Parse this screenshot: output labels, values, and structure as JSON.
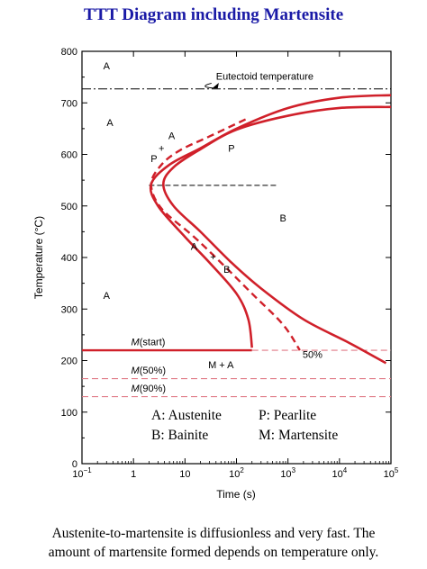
{
  "title": "TTT Diagram including Martensite",
  "caption": {
    "line1": "Austenite-to-martensite is diffusionless and very fast.  The",
    "line2": "amount of martensite formed depends on temperature only."
  },
  "colors": {
    "curve": "#d0202a",
    "ms_dashed": "#e07a86",
    "title": "#1a1aa6",
    "axis": "#000000"
  },
  "chart_data": {
    "type": "line",
    "xlabel": "Time (s)",
    "ylabel": "Temperature (°C)",
    "xscale": "log",
    "xlim": [
      0.1,
      100000
    ],
    "ylim": [
      0,
      800
    ],
    "x_ticks": [
      {
        "value": 0.1,
        "base": "10",
        "exp": "−1"
      },
      {
        "value": 1,
        "base": "1",
        "exp": ""
      },
      {
        "value": 10,
        "base": "10",
        "exp": ""
      },
      {
        "value": 100,
        "base": "10",
        "exp": "2"
      },
      {
        "value": 1000,
        "base": "10",
        "exp": "3"
      },
      {
        "value": 10000,
        "base": "10",
        "exp": "4"
      },
      {
        "value": 100000,
        "base": "10",
        "exp": "5"
      }
    ],
    "y_ticks": [
      0,
      100,
      200,
      300,
      400,
      500,
      600,
      700,
      800
    ],
    "series": [
      {
        "style": "solid",
        "points": [
          [
            100000,
            715
          ],
          [
            10000,
            710
          ],
          [
            1000,
            690
          ],
          [
            100,
            650
          ],
          [
            20,
            612
          ],
          [
            5,
            580
          ],
          [
            2.2,
            542
          ],
          [
            3,
            500
          ],
          [
            10,
            440
          ],
          [
            30,
            390
          ],
          [
            100,
            330
          ],
          [
            170,
            280
          ],
          [
            200,
            225
          ]
        ]
      },
      {
        "style": "dashed",
        "points": [
          [
            150,
            668
          ],
          [
            30,
            635
          ],
          [
            8,
            608
          ],
          [
            3.5,
            580
          ],
          [
            2.2,
            542
          ],
          [
            3.5,
            495
          ],
          [
            15,
            440
          ],
          [
            50,
            390
          ],
          [
            200,
            330
          ],
          [
            800,
            270
          ],
          [
            1700,
            220
          ]
        ]
      },
      {
        "style": "solid",
        "points": [
          [
            100000,
            692
          ],
          [
            10000,
            690
          ],
          [
            1000,
            675
          ],
          [
            100,
            648
          ],
          [
            20,
            610
          ],
          [
            6,
            575
          ],
          [
            3.8,
            542
          ],
          [
            6,
            500
          ],
          [
            20,
            450
          ],
          [
            80,
            390
          ],
          [
            300,
            340
          ],
          [
            2000,
            280
          ],
          [
            15000,
            235
          ],
          [
            80000,
            195
          ]
        ]
      }
    ],
    "reference_lines": [
      {
        "name": "eutectoid",
        "y": 727,
        "style": "dashdot"
      },
      {
        "name": "mid-dashed",
        "y": 540,
        "x_from": 2,
        "x_to": 600,
        "style": "dashed"
      },
      {
        "name": "ms-start",
        "y": 220,
        "style": "mixed"
      },
      {
        "name": "m50",
        "y": 165,
        "style": "dashed"
      },
      {
        "name": "m90",
        "y": 130,
        "style": "dashed"
      }
    ],
    "annotations": [
      {
        "text": "Eutectoid temperature",
        "x": 300,
        "y": 745
      },
      {
        "text": "A",
        "x": 0.3,
        "y": 765
      },
      {
        "text": "A",
        "x": 0.35,
        "y": 655
      },
      {
        "text": "P",
        "x": 80,
        "y": 605
      },
      {
        "text": "B",
        "x": 800,
        "y": 470
      },
      {
        "text": "A",
        "x": 0.3,
        "y": 320
      },
      {
        "text": "M + A",
        "x": 50,
        "y": 185
      },
      {
        "text": "50%",
        "x": 3000,
        "y": 205
      },
      {
        "text": "A",
        "x": 5.5,
        "y": 630
      },
      {
        "text": "P",
        "x": 2.5,
        "y": 585
      },
      {
        "text": "+",
        "x": 3.5,
        "y": 605
      },
      {
        "text": "A",
        "x": 15,
        "y": 415
      },
      {
        "text": "+",
        "x": 35,
        "y": 395
      },
      {
        "text": "B",
        "x": 65,
        "y": 370
      }
    ],
    "martensite_labels": [
      {
        "text": "M",
        "suffix": "(start)",
        "x": 0.9,
        "y": 230
      },
      {
        "text": "M",
        "suffix": "(50%)",
        "x": 0.9,
        "y": 175
      },
      {
        "text": "M",
        "suffix": "(90%)",
        "x": 0.9,
        "y": 140
      }
    ],
    "legend": [
      [
        "A: Austenite",
        "P: Pearlite"
      ],
      [
        "B: Bainite",
        "M: Martensite"
      ]
    ]
  }
}
